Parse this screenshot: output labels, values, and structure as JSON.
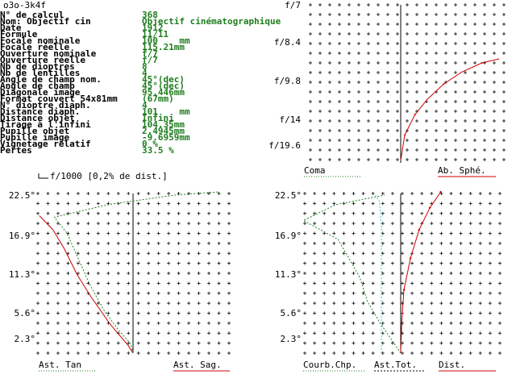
{
  "window_title": "o3o-3k4f",
  "specs": [
    {
      "label": "N° de calcul",
      "value": "368"
    },
    {
      "label": "Nom: Objectif cin",
      "value": "Objectif cinématographique"
    },
    {
      "label": "Date",
      "value": "1912"
    },
    {
      "label": "Formule",
      "value": "11/11"
    },
    {
      "label": "Focale nominale",
      "value": "100    mm"
    },
    {
      "label": "Focale réelle",
      "value": "115.21mm"
    },
    {
      "label": "Ouverture nominale",
      "value": "f/7"
    },
    {
      "label": "Ouverture réelle",
      "value": "f/7"
    },
    {
      "label": "Nb de dioptres",
      "value": "8"
    },
    {
      "label": "Nb de lentilles",
      "value": "4"
    },
    {
      "label": "Angle de champ nom.",
      "value": "45°(dec)"
    },
    {
      "label": "Angle de champ",
      "value": "45°(dec)"
    },
    {
      "label": "Diagonale image",
      "value": "95.446mm"
    },
    {
      "label": "Format couvert 54x81mm",
      "value": "(67mm)"
    },
    {
      "label": "N° dioptre diaph.",
      "value": "4"
    },
    {
      "label": "Distance diaph.",
      "value": "101    mm"
    },
    {
      "label": "Distance objet",
      "value": "Infini"
    },
    {
      "label": "Tirage à l'infini",
      "value": "104.35mm"
    },
    {
      "label": "Pupille objet",
      "value": "2.4945mm"
    },
    {
      "label": "Pupille image",
      "value": "-9.6959mm"
    },
    {
      "label": "Vignetage relatif",
      "value": "0 %"
    },
    {
      "label": "Pertes",
      "value": "33.5 %"
    }
  ],
  "scale_note": "f/1000 [0,2% de dist.]",
  "colors": {
    "green": "#1e7d1e",
    "red": "#cc0000",
    "cyan": "#33cccc",
    "black": "#000000"
  },
  "chart_data": [
    {
      "type": "line",
      "title": "",
      "y_tick_labels": [
        "f/7",
        "f/8.4",
        "f/9.8",
        "f/14",
        "f/19.6"
      ],
      "series": [
        {
          "name": "Coma",
          "values": []
        },
        {
          "name": "Ab. Sphé.",
          "values": [
            [
              0,
              0
            ],
            [
              0.4,
              0.25
            ],
            [
              1.4,
              0.45
            ],
            [
              2.6,
              0.6
            ],
            [
              4.2,
              0.75
            ],
            [
              6.0,
              0.87
            ],
            [
              8.0,
              0.96
            ],
            [
              9.7,
              1.0
            ]
          ]
        }
      ]
    },
    {
      "type": "line",
      "title": "",
      "y_tick_labels": [
        "22.5°",
        "16.9°",
        "11.3°",
        "5.6°",
        "2.3°"
      ],
      "series": [
        {
          "name": "Ast. Tan",
          "values": [
            [
              0,
              0
            ],
            [
              -0.4,
              0.05
            ],
            [
              -1.8,
              0.18
            ],
            [
              -3.4,
              0.36
            ],
            [
              -4.5,
              0.5
            ],
            [
              -5.5,
              0.66
            ],
            [
              -6.4,
              0.78
            ],
            [
              -7.5,
              0.87
            ]
          ]
        },
        {
          "name": "Ast. Sag.",
          "values": [
            [
              0,
              0
            ],
            [
              -0.2,
              0.06
            ],
            [
              -1.2,
              0.15
            ],
            [
              -2.4,
              0.28
            ],
            [
              -3.5,
              0.44
            ],
            [
              -4.5,
              0.62
            ],
            [
              -5.3,
              0.76
            ],
            [
              -6.3,
              0.86
            ],
            [
              -2.0,
              0.94
            ],
            [
              3.3,
              1.0
            ],
            [
              6.8,
              1.02
            ]
          ]
        }
      ]
    },
    {
      "type": "line",
      "title": "",
      "y_tick_labels": [
        "22.5°",
        "16.9°",
        "11.3°",
        "5.6°",
        "2.3°"
      ],
      "series": [
        {
          "name": "Courb.Chp.",
          "values": [
            [
              0,
              0
            ],
            [
              -0.8,
              0.08
            ],
            [
              -2.0,
              0.2
            ],
            [
              -3.1,
              0.33
            ],
            [
              -3.8,
              0.48
            ],
            [
              -5.8,
              0.72
            ],
            [
              -9.0,
              0.84
            ],
            [
              -6.0,
              0.94
            ],
            [
              -1.5,
              1.0
            ]
          ]
        },
        {
          "name": "Ast.Tot.",
          "values": [
            [
              -1.0,
              0
            ],
            [
              -1.0,
              0.8
            ],
            [
              -1.4,
              0.96
            ],
            [
              -2.2,
              1.0
            ]
          ]
        },
        {
          "name": "Dist.",
          "values": [
            [
              0,
              0
            ],
            [
              0.1,
              0.2
            ],
            [
              0.3,
              0.4
            ],
            [
              0.9,
              0.6
            ],
            [
              1.7,
              0.78
            ],
            [
              2.7,
              0.92
            ],
            [
              3.7,
              1.02
            ]
          ]
        }
      ]
    }
  ]
}
